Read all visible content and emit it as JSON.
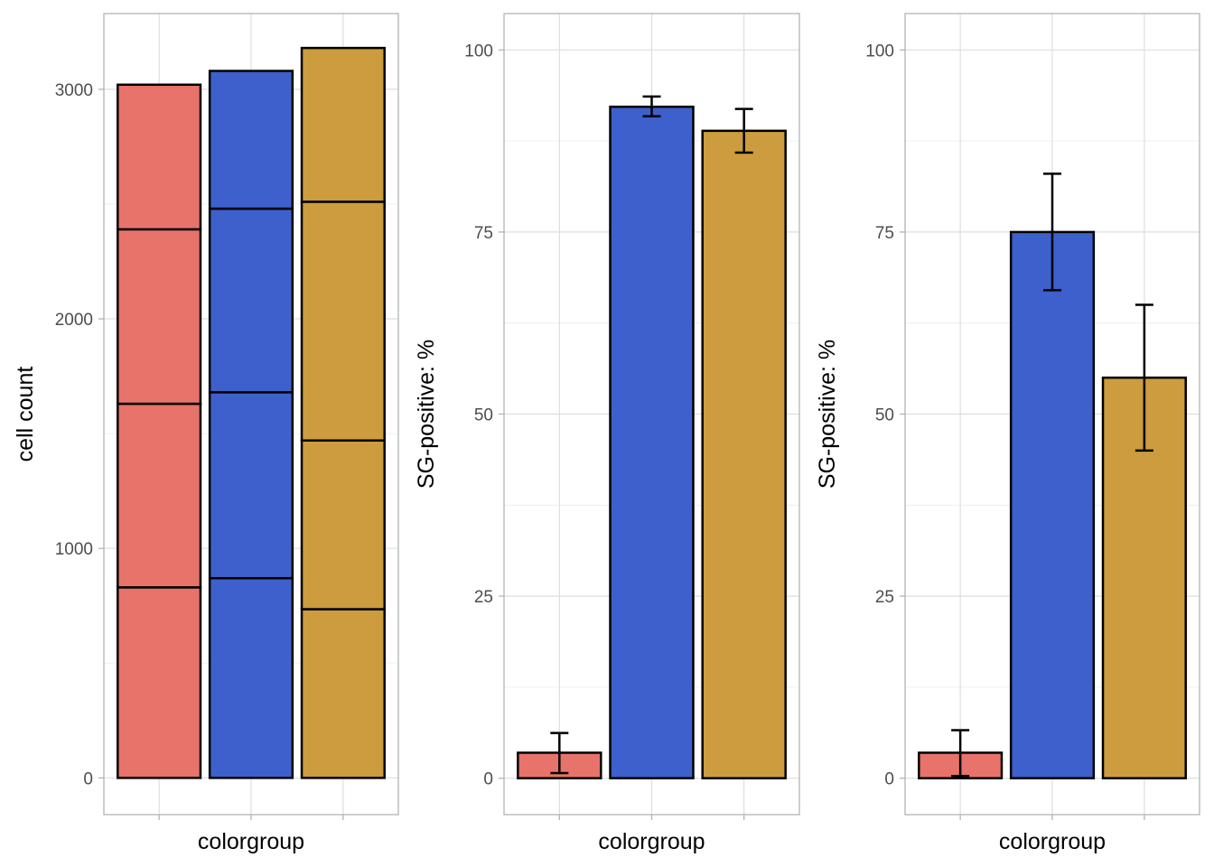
{
  "chart_data": [
    {
      "type": "bar",
      "stacked": true,
      "categories": [
        "",
        "",
        ""
      ],
      "xlabel": "colorgroup",
      "ylabel": "cell count",
      "ylim": [
        -160,
        3330
      ],
      "yticks": [
        0,
        1000,
        2000,
        3000
      ],
      "grid": true,
      "colors": [
        "#e8736a",
        "#3d60cc",
        "#cc9c3e"
      ],
      "segments": [
        [
          830,
          1630,
          2390,
          3020
        ],
        [
          870,
          1680,
          2480,
          3080
        ],
        [
          735,
          1470,
          2510,
          3180
        ]
      ]
    },
    {
      "type": "bar",
      "categories": [
        "",
        "",
        ""
      ],
      "xlabel": "colorgroup",
      "ylabel": "SG-positive: %",
      "ylim": [
        -5,
        105
      ],
      "yticks": [
        0,
        25,
        50,
        75,
        100
      ],
      "grid": true,
      "colors": [
        "#e8736a",
        "#3d60cc",
        "#cc9c3e"
      ],
      "values": [
        3.5,
        92.2,
        88.9
      ],
      "errors": [
        [
          0.7,
          6.2
        ],
        [
          90.9,
          93.6
        ],
        [
          85.9,
          91.9
        ]
      ]
    },
    {
      "type": "bar",
      "categories": [
        "",
        "",
        ""
      ],
      "xlabel": "colorgroup",
      "ylabel": "SG-positive: %",
      "ylim": [
        -5,
        105
      ],
      "yticks": [
        0,
        25,
        50,
        75,
        100
      ],
      "grid": true,
      "colors": [
        "#e8736a",
        "#3d60cc",
        "#cc9c3e"
      ],
      "values": [
        3.5,
        75,
        55
      ],
      "errors": [
        [
          0.3,
          6.6
        ],
        [
          67,
          83
        ],
        [
          45,
          65
        ]
      ]
    }
  ]
}
